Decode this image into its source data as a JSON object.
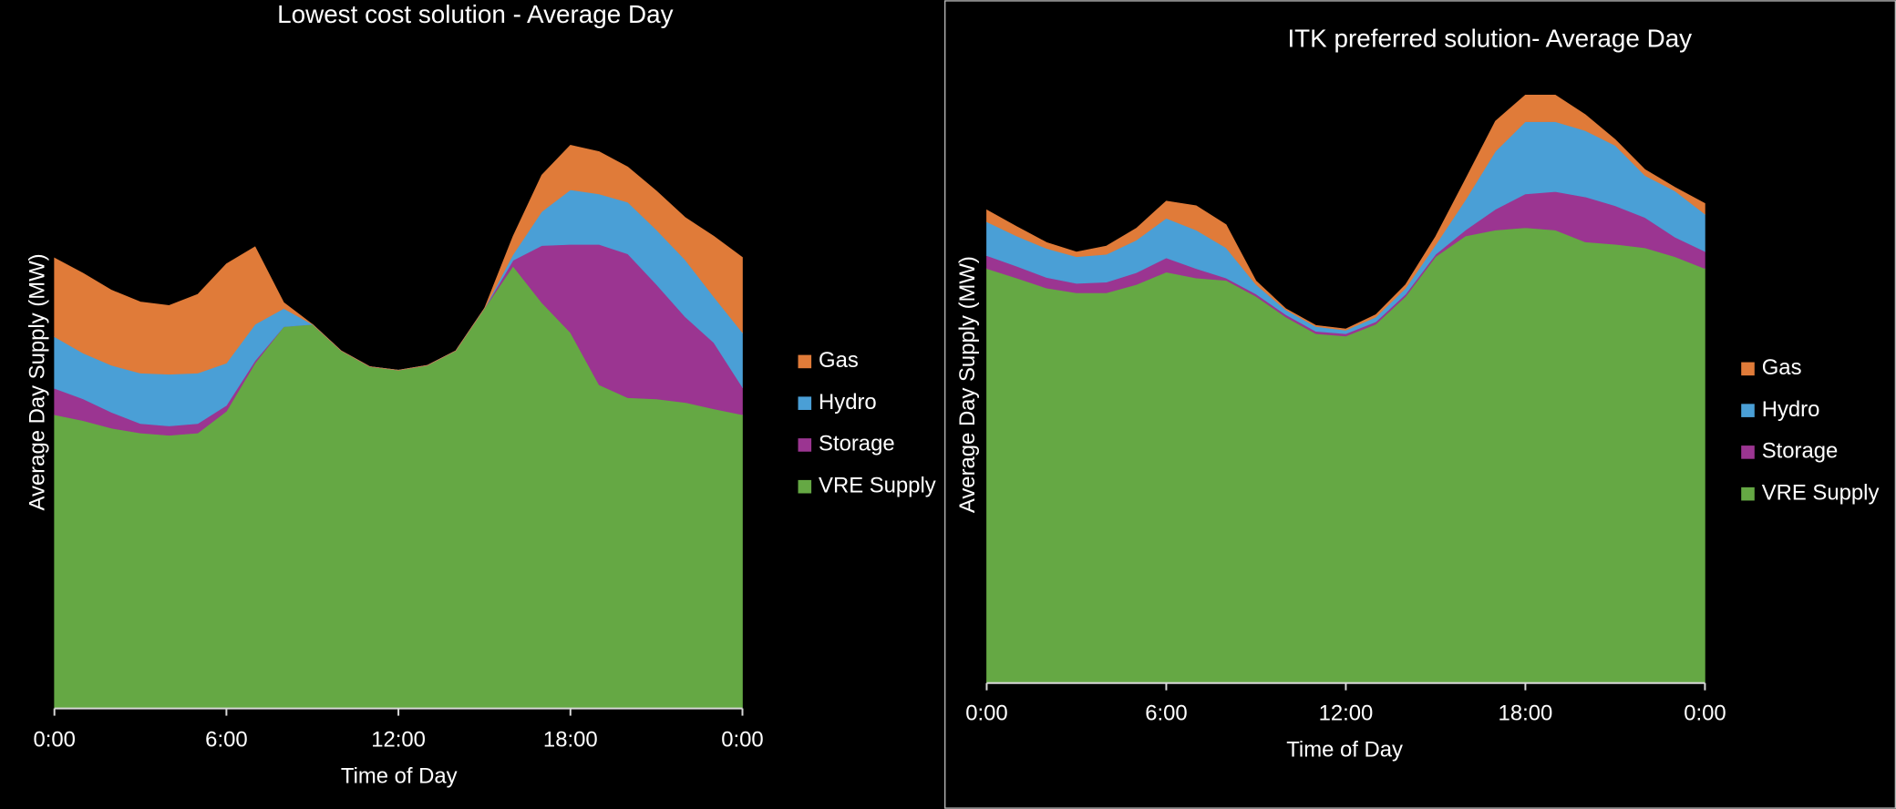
{
  "chart_data": [
    {
      "type": "area",
      "stacked": true,
      "title": "Lowest cost solution - Average Day",
      "x_label": "Time of Day",
      "y_label": "Average Day Supply (MW)",
      "x": [
        0,
        1,
        2,
        3,
        4,
        5,
        6,
        7,
        8,
        9,
        10,
        11,
        12,
        13,
        14,
        15,
        16,
        17,
        18,
        19,
        20,
        21,
        22,
        23,
        24
      ],
      "xlim": [
        0,
        24
      ],
      "xticks": [
        {
          "value": 0,
          "label": "0:00"
        },
        {
          "value": 6,
          "label": "6:00"
        },
        {
          "value": 12,
          "label": "12:00"
        },
        {
          "value": 18,
          "label": "18:00"
        },
        {
          "value": 24,
          "label": "0:00"
        }
      ],
      "ylim": [
        0,
        100
      ],
      "series": [
        {
          "name": "Gas",
          "color": "#e07b39",
          "values": [
            13.4,
            13.6,
            12.8,
            12.1,
            11.7,
            13.4,
            16.9,
            13.2,
            1.0,
            0,
            0,
            0,
            0,
            0,
            0,
            0,
            3.1,
            6.2,
            7.6,
            7.2,
            6.0,
            6.6,
            7.2,
            10.3,
            12.8
          ]
        },
        {
          "name": "Hydro",
          "color": "#4a9fd6",
          "values": [
            8.8,
            7.8,
            8.0,
            8.6,
            8.8,
            8.6,
            7.2,
            6.2,
            3.1,
            0,
            0,
            0,
            0,
            0,
            0,
            0,
            1.0,
            5.8,
            9.3,
            8.6,
            8.8,
            9.3,
            9.7,
            7.8,
            9.3
          ]
        },
        {
          "name": "Storage",
          "color": "#9b3591",
          "values": [
            4.5,
            3.7,
            2.7,
            1.6,
            1.6,
            1.6,
            1.0,
            0.4,
            0,
            0,
            0,
            0,
            0,
            0,
            0,
            0,
            1.0,
            9.7,
            15.0,
            23.9,
            24.5,
            19.5,
            14.6,
            11.3,
            4.7
          ]
        },
        {
          "name": "VRE Supply",
          "color": "#65a844",
          "values": [
            50.0,
            49.0,
            47.7,
            46.9,
            46.5,
            46.9,
            50.6,
            58.8,
            65.0,
            65.4,
            60.9,
            58.2,
            57.6,
            58.4,
            60.9,
            68.1,
            75.3,
            69.1,
            64.0,
            55.1,
            52.9,
            52.7,
            52.1,
            51.0,
            50.0
          ]
        }
      ]
    },
    {
      "type": "area",
      "stacked": true,
      "title": "ITK preferred solution- Average Day",
      "x_label": "Time of Day",
      "y_label": "Average Day Supply (MW)",
      "x": [
        0,
        1,
        2,
        3,
        4,
        5,
        6,
        7,
        8,
        9,
        10,
        11,
        12,
        13,
        14,
        15,
        16,
        17,
        18,
        19,
        20,
        21,
        22,
        23,
        24
      ],
      "xlim": [
        0,
        24
      ],
      "xticks": [
        {
          "value": 0,
          "label": "0:00"
        },
        {
          "value": 6,
          "label": "6:00"
        },
        {
          "value": 12,
          "label": "12:00"
        },
        {
          "value": 18,
          "label": "18:00"
        },
        {
          "value": 24,
          "label": "0:00"
        }
      ],
      "ylim": [
        0,
        100
      ],
      "series": [
        {
          "name": "Gas",
          "color": "#e07b39",
          "values": [
            2.0,
            1.6,
            1.0,
            0.8,
            1.4,
            2.0,
            2.9,
            4.1,
            3.9,
            0.6,
            0.2,
            0.2,
            0.2,
            0.4,
            0.6,
            1.4,
            3.5,
            5.1,
            4.5,
            4.5,
            2.7,
            1.0,
            1.0,
            0.6,
            1.8
          ]
        },
        {
          "name": "Hydro",
          "color": "#4a9fd6",
          "values": [
            5.7,
            5.1,
            4.9,
            4.5,
            4.7,
            5.5,
            6.7,
            6.5,
            5.1,
            1.6,
            0.8,
            0.8,
            0.6,
            0.8,
            1.0,
            1.6,
            5.1,
            9.8,
            12.2,
            11.8,
            11.2,
            10.2,
            7.1,
            7.8,
            6.3
          ]
        },
        {
          "name": "Storage",
          "color": "#9b3591",
          "values": [
            2.2,
            2.0,
            1.8,
            1.6,
            1.8,
            2.0,
            2.4,
            1.6,
            0.4,
            0.4,
            0.4,
            0.4,
            0.4,
            0.4,
            0.4,
            0.4,
            1.0,
            3.5,
            5.7,
            6.5,
            7.6,
            6.5,
            5.1,
            3.3,
            2.9
          ]
        },
        {
          "name": "VRE Supply",
          "color": "#65a844",
          "values": [
            70.0,
            68.4,
            66.7,
            65.9,
            65.9,
            67.3,
            69.4,
            68.4,
            68.0,
            65.3,
            61.8,
            59.0,
            58.6,
            60.6,
            65.3,
            72.0,
            75.5,
            76.5,
            76.9,
            76.5,
            74.5,
            74.1,
            73.5,
            72.0,
            70.0
          ]
        }
      ]
    }
  ]
}
